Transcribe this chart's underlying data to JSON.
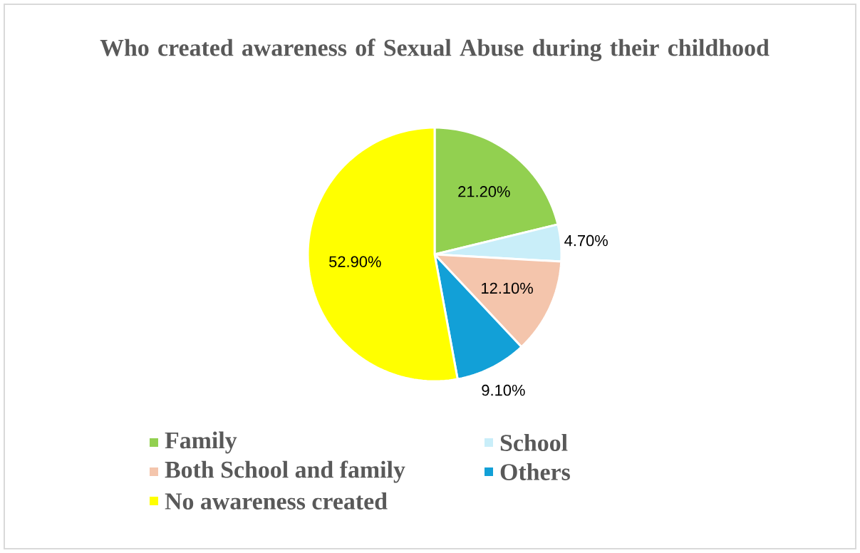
{
  "chart_data": {
    "type": "pie",
    "title": "Who created awareness of Sexual Abuse during their childhood",
    "categories": [
      "Family",
      "School",
      "Both School and family",
      "Others",
      "No awareness created"
    ],
    "values": [
      21.2,
      4.7,
      12.1,
      9.1,
      52.9
    ],
    "value_labels": [
      "21.20%",
      "4.70%",
      "12.10%",
      "9.10%",
      "52.90%"
    ],
    "colors": [
      "#92d050",
      "#c9eef9",
      "#f4c5ac",
      "#12a0d7",
      "#ffff00"
    ],
    "legend": "bottom"
  }
}
